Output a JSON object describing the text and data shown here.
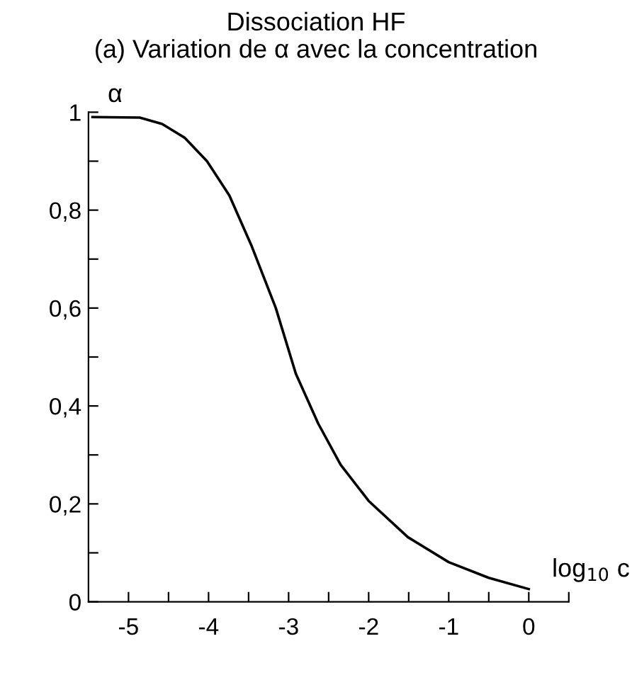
{
  "chart_data": {
    "type": "line",
    "title": "Dissociation HF",
    "subtitle": "(a) Variation de α avec la concentration",
    "xlabel": "log$_{10}$ c",
    "ylabel": "α",
    "x": [
      -5.45,
      -4.86,
      -4.58,
      -4.3,
      -4.02,
      -3.74,
      -3.46,
      -3.16,
      -2.91,
      -2.63,
      -2.35,
      -2.0,
      -1.51,
      -1.0,
      -0.5,
      0
    ],
    "series": [
      {
        "color": "#000000",
        "values": [
          0.99,
          0.989,
          0.976,
          0.948,
          0.9,
          0.83,
          0.726,
          0.6,
          0.466,
          0.364,
          0.28,
          0.206,
          0.132,
          0.081,
          0.049,
          0.026
        ]
      }
    ],
    "xlim": [
      -5.5,
      0.5
    ],
    "ylim": [
      0,
      1
    ],
    "xticks": [
      {
        "value": -5,
        "label": "-5"
      },
      {
        "value": -4.5,
        "label": null
      },
      {
        "value": -4,
        "label": "-4"
      },
      {
        "value": -3.5,
        "label": null
      },
      {
        "value": -3,
        "label": "-3"
      },
      {
        "value": -2.5,
        "label": null
      },
      {
        "value": -2,
        "label": "-2"
      },
      {
        "value": -1.5,
        "label": null
      },
      {
        "value": -1,
        "label": "-1"
      },
      {
        "value": -0.5,
        "label": null
      },
      {
        "value": 0,
        "label": "0"
      },
      {
        "value": 0.5,
        "label": null
      }
    ],
    "yticks": [
      0,
      {
        "value": 0.1,
        "label": null
      },
      {
        "value": 0.2,
        "label": "0,2"
      },
      {
        "value": 0.3,
        "label": null
      },
      {
        "value": 0.4,
        "label": "0,4"
      },
      {
        "value": 0.5,
        "label": null
      },
      {
        "value": 0.6,
        "label": "0,6"
      },
      {
        "value": 0.7,
        "label": null
      },
      {
        "value": 0.8,
        "label": "0,8"
      },
      {
        "value": 0.9,
        "label": null
      },
      1
    ],
    "grid": false,
    "marker": "none",
    "line_style": "solid"
  }
}
